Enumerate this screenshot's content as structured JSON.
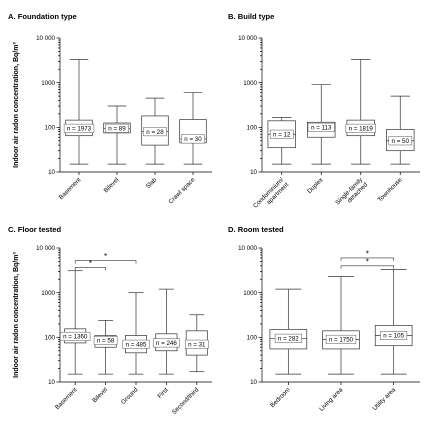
{
  "chart_data": [
    {
      "type": "box",
      "title": "A. Foundation type",
      "ylabel": "Indoor air radon concentration, Bq/m³",
      "ylim": [
        10,
        10000
      ],
      "yscale": "log",
      "yticks": [
        "10",
        "100",
        "1000",
        "10 000"
      ],
      "categories": [
        "Basement",
        "Bilevel",
        "Slab",
        "Crawl space"
      ],
      "n_labels": [
        "n = 1973",
        "n = 89",
        "n = 28",
        "n = 30"
      ],
      "boxes": [
        {
          "min": 15,
          "q1": 65,
          "median": 95,
          "q3": 145,
          "max": 3300
        },
        {
          "min": 15,
          "q1": 75,
          "median": 95,
          "q3": 125,
          "max": 300
        },
        {
          "min": 15,
          "q1": 40,
          "median": 80,
          "q3": 180,
          "max": 450
        },
        {
          "min": 15,
          "q1": 45,
          "median": 55,
          "q3": 150,
          "max": 600
        }
      ],
      "brackets": []
    },
    {
      "type": "box",
      "title": "B. Build type",
      "ylabel": "",
      "ylim": [
        10,
        10000
      ],
      "yscale": "log",
      "yticks": [
        "10",
        "100",
        "1000",
        "10 000"
      ],
      "categories": [
        "Condominium/\napartment",
        "Duplex",
        "Single-family\ndetached",
        "Townhouse"
      ],
      "n_labels": [
        "n = 12",
        "n = 113",
        "n = 1819",
        "n = 50"
      ],
      "boxes": [
        {
          "min": 15,
          "q1": 35,
          "median": 70,
          "q3": 140,
          "max": 165
        },
        {
          "min": 15,
          "q1": 60,
          "median": 100,
          "q3": 130,
          "max": 900
        },
        {
          "min": 15,
          "q1": 65,
          "median": 95,
          "q3": 145,
          "max": 3300
        },
        {
          "min": 15,
          "q1": 30,
          "median": 50,
          "q3": 90,
          "max": 500
        }
      ],
      "brackets": []
    },
    {
      "type": "box",
      "title": "C. Floor tested",
      "ylabel": "Indoor air radon concentration, Bq/m³",
      "ylim": [
        10,
        10000
      ],
      "yscale": "log",
      "yticks": [
        "10",
        "100",
        "1000",
        "10 000"
      ],
      "categories": [
        "Basement",
        "Bilevel",
        "Ground",
        "First",
        "Second/third"
      ],
      "n_labels": [
        "n = 1360",
        "n = 58",
        "n = 485",
        "n = 246",
        "n = 31"
      ],
      "boxes": [
        {
          "min": 15,
          "q1": 75,
          "median": 105,
          "q3": 155,
          "max": 3100
        },
        {
          "min": 15,
          "q1": 60,
          "median": 85,
          "q3": 110,
          "max": 240
        },
        {
          "min": 15,
          "q1": 45,
          "median": 70,
          "q3": 110,
          "max": 1000
        },
        {
          "min": 15,
          "q1": 50,
          "median": 75,
          "q3": 120,
          "max": 1200
        },
        {
          "min": 17,
          "q1": 40,
          "median": 70,
          "q3": 140,
          "max": 320
        }
      ],
      "brackets": [
        {
          "from": 0,
          "to": 2,
          "label": "*",
          "y": 5200
        },
        {
          "from": 0,
          "to": 1,
          "label": "*",
          "y": 3700
        }
      ]
    },
    {
      "type": "box",
      "title": "D. Room tested",
      "ylabel": "",
      "ylim": [
        10,
        10000
      ],
      "yscale": "log",
      "yticks": [
        "10",
        "100",
        "1000",
        "10 000"
      ],
      "categories": [
        "Bedroom",
        "Living area",
        "Utility area"
      ],
      "n_labels": [
        "n = 282",
        "n = 1750",
        "n = 105"
      ],
      "boxes": [
        {
          "min": 15,
          "q1": 55,
          "median": 95,
          "q3": 150,
          "max": 1200
        },
        {
          "min": 15,
          "q1": 55,
          "median": 90,
          "q3": 140,
          "max": 2300
        },
        {
          "min": 15,
          "q1": 65,
          "median": 110,
          "q3": 185,
          "max": 3300
        }
      ],
      "brackets": [
        {
          "from": 1,
          "to": 2,
          "label": "*",
          "y": 6000
        },
        {
          "from": 1,
          "to": 2,
          "label": "*",
          "y": 4000
        }
      ]
    }
  ]
}
